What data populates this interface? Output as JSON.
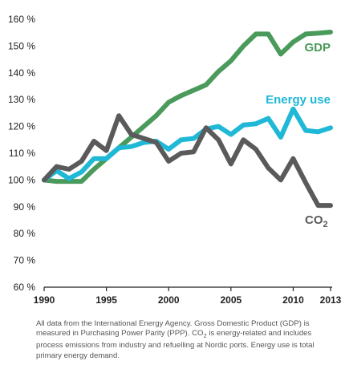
{
  "chart_data": {
    "type": "line",
    "x": [
      1990,
      1991,
      1992,
      1993,
      1994,
      1995,
      1996,
      1997,
      1998,
      1999,
      2000,
      2001,
      2002,
      2003,
      2004,
      2005,
      2006,
      2007,
      2008,
      2009,
      2010,
      2011,
      2012,
      2013
    ],
    "xticks": [
      1990,
      1995,
      2000,
      2005,
      2010,
      2013
    ],
    "yticks": [
      60,
      70,
      80,
      90,
      100,
      110,
      120,
      130,
      140,
      150,
      160
    ],
    "ytick_suffix": " %",
    "ylim": [
      60,
      160
    ],
    "xlim": [
      1990,
      2013
    ],
    "grid": false,
    "series": [
      {
        "name": "GDP",
        "color": "#4a9a5b",
        "values": [
          100,
          99.5,
          99.5,
          99.5,
          104,
          108,
          112,
          116,
          120,
          124,
          129,
          131.5,
          133.5,
          135.5,
          140.5,
          144.5,
          150,
          154.5,
          154.5,
          147,
          151.5,
          154.5,
          154.8,
          155.2
        ]
      },
      {
        "name": "Energy use",
        "color": "#1fb8d6",
        "values": [
          100,
          103.5,
          100.5,
          103,
          108,
          108,
          112,
          112.5,
          114,
          114.5,
          111.5,
          115,
          115.5,
          119,
          120,
          117,
          120.5,
          121,
          123,
          116,
          126.5,
          118.5,
          118,
          119.5
        ]
      },
      {
        "name": "CO2",
        "name_main": "CO",
        "name_sub": "2",
        "color": "#5a5a5a",
        "values": [
          100,
          105,
          104,
          107,
          114.5,
          111,
          124,
          117,
          115.5,
          114,
          107,
          110,
          110.5,
          119.5,
          115,
          106,
          115,
          111.5,
          104.5,
          100,
          108,
          99,
          90.5,
          90.5
        ]
      }
    ]
  },
  "note": {
    "part1": "All data from the International Energy Agency. Gross Domestic Product (GDP) is measured in Purchasing Power Parity (PPP). CO",
    "sub": "2",
    "part2": " is energy-related and includes process emissions from industry and refuelling at Nordic ports. Energy use is total primary energy demand."
  }
}
